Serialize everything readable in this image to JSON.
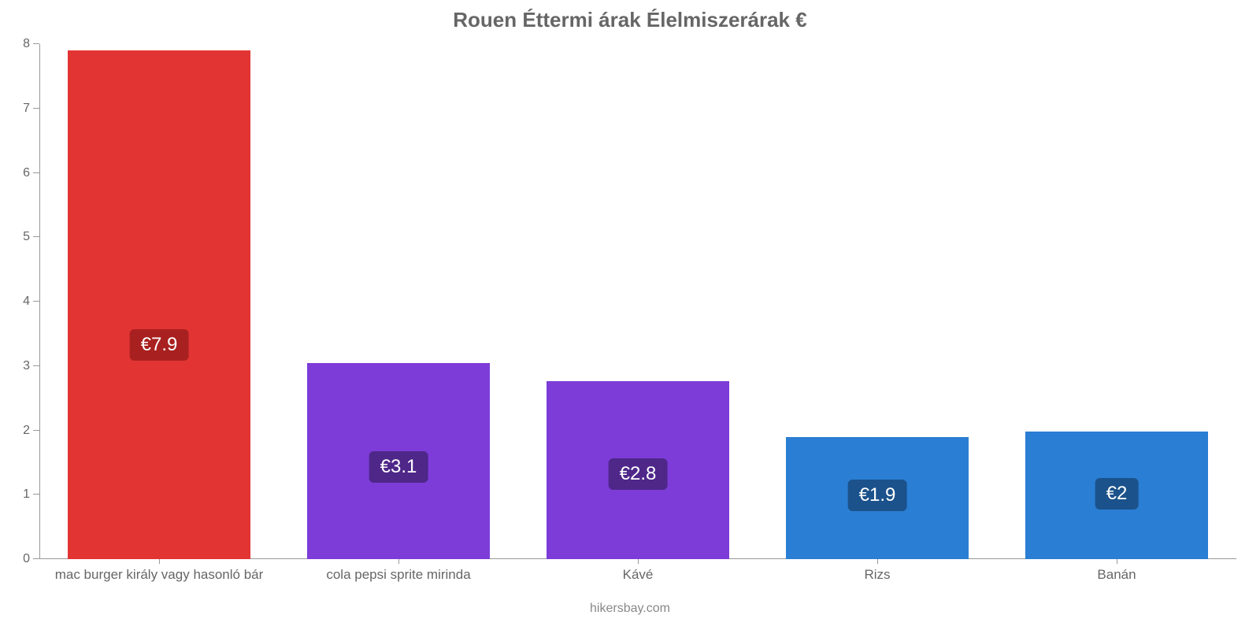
{
  "chart": {
    "type": "bar",
    "title": "Rouen Éttermi árak Élelmiszerárak €",
    "title_fontsize": 26,
    "title_color": "#666666",
    "credit": "hikersbay.com",
    "credit_fontsize": 16,
    "credit_color": "#888888",
    "background_color": "#ffffff",
    "axis_color": "#999999",
    "tick_label_color": "#666666",
    "tick_label_fontsize": 16,
    "x_category_fontsize": 17,
    "y": {
      "min": 0,
      "max": 8,
      "ticks": [
        0,
        1,
        2,
        3,
        4,
        5,
        6,
        7,
        8
      ]
    },
    "bar_fill_ratio": 0.76,
    "badge_fontsize": 24,
    "badge_radius": 6,
    "bars": [
      {
        "category": "mac burger király vagy hasonló bár",
        "value": 7.9,
        "label": "€7.9",
        "bar_color": "#e33434",
        "badge_bg": "#a92020"
      },
      {
        "category": "cola pepsi sprite mirinda",
        "value": 3.05,
        "label": "€3.1",
        "bar_color": "#7d3cd8",
        "badge_bg": "#4e2789"
      },
      {
        "category": "Kávé",
        "value": 2.77,
        "label": "€2.8",
        "bar_color": "#7d3cd8",
        "badge_bg": "#4e2789"
      },
      {
        "category": "Rizs",
        "value": 1.9,
        "label": "€1.9",
        "bar_color": "#2a7ed3",
        "badge_bg": "#1b528b"
      },
      {
        "category": "Banán",
        "value": 1.98,
        "label": "€2",
        "bar_color": "#2a7ed3",
        "badge_bg": "#1b528b"
      }
    ]
  }
}
